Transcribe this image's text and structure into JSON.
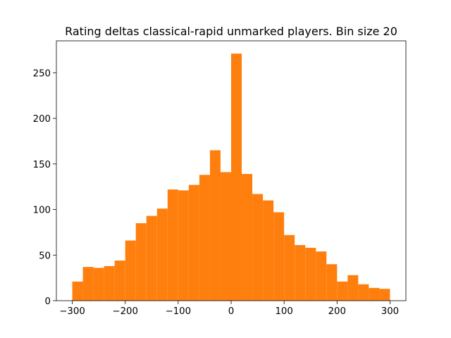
{
  "chart_data": {
    "type": "bar",
    "title": "Rating deltas classical-rapid unmarked players. Bin size 20",
    "xlabel": "",
    "ylabel": "",
    "bar_color": "#ff7f0e",
    "grid": false,
    "xlim": [
      -330,
      330
    ],
    "ylim": [
      0,
      285
    ],
    "x_ticks": [
      -300,
      -200,
      -100,
      0,
      100,
      200,
      300
    ],
    "x_tick_labels": [
      "−300",
      "−200",
      "−100",
      "0",
      "100",
      "200",
      "300"
    ],
    "y_ticks": [
      0,
      50,
      100,
      150,
      200,
      250
    ],
    "y_tick_labels": [
      "0",
      "50",
      "100",
      "150",
      "200",
      "250"
    ],
    "bin_edges": [
      -300,
      -280,
      -260,
      -240,
      -220,
      -200,
      -180,
      -160,
      -140,
      -120,
      -100,
      -80,
      -60,
      -40,
      -20,
      0,
      20,
      40,
      60,
      80,
      100,
      120,
      140,
      160,
      180,
      200,
      220,
      240,
      260,
      280,
      300
    ],
    "values": [
      21,
      37,
      36,
      38,
      44,
      66,
      85,
      93,
      101,
      122,
      121,
      127,
      138,
      165,
      141,
      271,
      139,
      117,
      110,
      97,
      72,
      61,
      58,
      54,
      40,
      21,
      28,
      18,
      14,
      13
    ]
  }
}
